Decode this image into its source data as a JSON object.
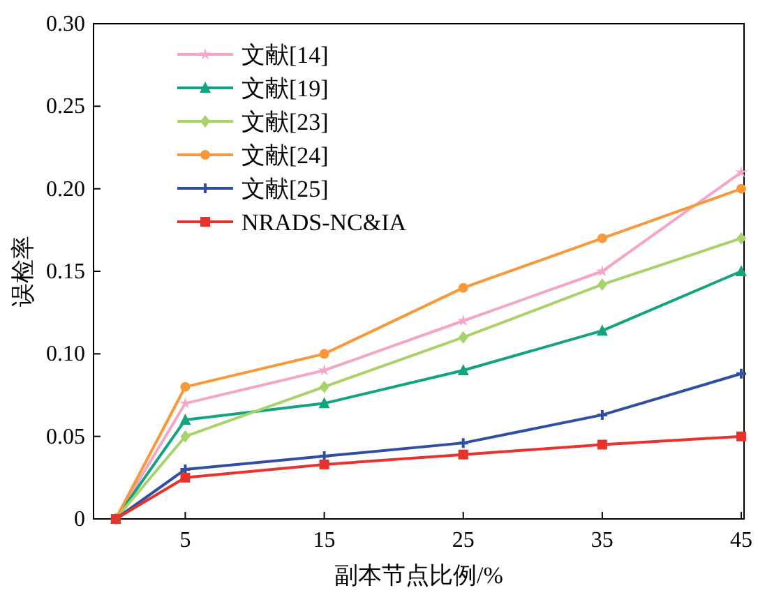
{
  "chart_data": {
    "type": "line",
    "xlabel": "副本节点比例/%",
    "ylabel": "误检率",
    "x": [
      0,
      5,
      15,
      25,
      35,
      45
    ],
    "xlim": [
      -1.6,
      45.2
    ],
    "xticks": [
      5,
      15,
      25,
      35,
      45
    ],
    "ylim": [
      0,
      0.3
    ],
    "yticks": [
      {
        "value": 0,
        "label": "0"
      },
      {
        "value": 0.05,
        "label": "0.05"
      },
      {
        "value": 0.1,
        "label": "0.10"
      },
      {
        "value": 0.15,
        "label": "0.15"
      },
      {
        "value": 0.2,
        "label": "0.20"
      },
      {
        "value": 0.25,
        "label": "0.25"
      },
      {
        "value": 0.3,
        "label": "0.30"
      }
    ],
    "grid": false,
    "legend": "top left",
    "series": [
      {
        "name": "文献[14]",
        "color": "#f4a6c8",
        "marker": "star",
        "values": [
          0,
          0.07,
          0.09,
          0.12,
          0.15,
          0.21
        ]
      },
      {
        "name": "文献[19]",
        "color": "#12a37f",
        "marker": "triangle",
        "values": [
          0,
          0.06,
          0.07,
          0.09,
          0.114,
          0.15
        ]
      },
      {
        "name": "文献[23]",
        "color": "#a9d26a",
        "marker": "diamond",
        "values": [
          0,
          0.05,
          0.08,
          0.11,
          0.142,
          0.17
        ]
      },
      {
        "name": "文献[24]",
        "color": "#f7993a",
        "marker": "circle",
        "values": [
          0,
          0.08,
          0.1,
          0.14,
          0.17,
          0.2
        ]
      },
      {
        "name": "文献[25]",
        "color": "#2f4fa3",
        "marker": "cross",
        "values": [
          0,
          0.03,
          0.038,
          0.046,
          0.063,
          0.088
        ]
      },
      {
        "name": "NRADS-NC&IA",
        "color": "#e8322d",
        "marker": "square",
        "values": [
          0,
          0.025,
          0.033,
          0.039,
          0.045,
          0.05
        ]
      }
    ]
  }
}
